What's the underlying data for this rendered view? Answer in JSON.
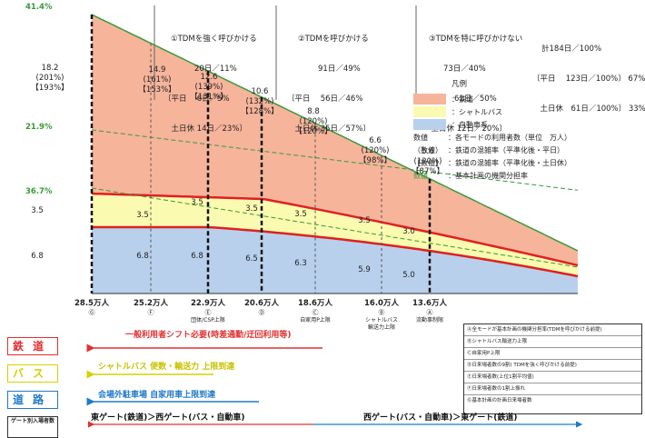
{
  "chart_data": {
    "type": "area",
    "x_points": [
      "28.5万人",
      "25.2万人",
      "22.9万人",
      "20.6万人",
      "18.6万人",
      "16.0万人",
      "13.6万人"
    ],
    "x_letters": [
      "Ⓖ",
      "Ⓕ",
      "Ⓔ",
      "Ⓓ",
      "Ⓒ",
      "Ⓑ",
      "Ⓐ"
    ],
    "x_sublabels": [
      "",
      "",
      "団体/CSP上限",
      "",
      "自家用P上限",
      "シャトルバス\n輸送力上限",
      "流動事制限"
    ],
    "series": [
      {
        "name": "鉄道",
        "color": "#f6b49b"
      },
      {
        "name": "シャトルバス",
        "color": "#fafab0"
      },
      {
        "name": "自動車系",
        "color": "#b8d0ec"
      }
    ],
    "rail_labels": [
      {
        "value": "18.2",
        "p1": "(201%)",
        "p2": "【193%】"
      },
      {
        "value": "14.9",
        "p1": "(161%)",
        "p2": "【153%】"
      },
      {
        "value": "12.6",
        "p1": "(139%)",
        "p2": "【131%】"
      },
      {
        "value": "10.6",
        "p1": "(132%)",
        "p2": "【128%】"
      },
      {
        "value": "8.8",
        "p1": "(120%)",
        "p2": "【120%】"
      },
      {
        "value": "6.6",
        "p1": "(120%)",
        "p2": "【98%】"
      },
      {
        "value": "5.6",
        "p1": "(120%)",
        "p2": "【87%】"
      }
    ],
    "bus_labels": [
      "3.5",
      "3.5",
      "3.5",
      "3.5",
      "3.5",
      "3.5",
      "3.0"
    ],
    "car_labels": [
      "6.8",
      "6.8",
      "6.8",
      "6.5",
      "6.3",
      "5.9",
      "5.0"
    ],
    "left_pct": [
      "41.4%",
      "21.9%",
      "36.7%"
    ],
    "sections": [
      {
        "lines": [
          "①TDMを強く呼びかける",
          "20日／11%",
          "〔平日　 6日／5%",
          "　土日休 14日／23%〕"
        ]
      },
      {
        "lines": [
          "②TDMを呼びかける",
          "91日／49%",
          "〔平日　 56日／46%",
          "　土日休 35日／57%〕"
        ]
      },
      {
        "lines": [
          "③TDMを特に呼びかけない",
          "73日／40%",
          "〔平日　61日／50%",
          "　土日休 12日／20%〕"
        ]
      }
    ],
    "totals": {
      "lines": [
        "計184日／100%",
        "〔平日　 123日／100%〕 67%",
        "　土日休　61日／100%〕 33%"
      ]
    },
    "legend": {
      "title": "凡例",
      "rows": [
        {
          "label": "：鉄道"
        },
        {
          "label": "：シャトルバス"
        },
        {
          "label": "：自動車系"
        }
      ],
      "notes": [
        {
          "key": "数値",
          "desc": "：各モードの利用者数（単位　万人）"
        },
        {
          "key": "（数値）",
          "desc": "：鉄道の混雑率（平準化後・平日）"
        },
        {
          "key": "【数値】",
          "desc": "：鉄道の混雑率（平準化後・土日休）"
        },
        {
          "key": "数値",
          "desc": "：基本計画の機関分担率",
          "key_color": "#3a9a3a"
        }
      ]
    }
  },
  "bottom_box": {
    "items": [
      "Ⓐ全モードが基本計画の機関分担率(TDMを呼びかける前提)",
      "Ⓑシャトルバス輸送力上限",
      "Ⓒ自家用P上限",
      "Ⓓ日来場者数の9割( TDMを強く呼びかける前提)",
      "Ⓔ日来場者数(上位1割平均値)",
      "Ⓕ日来場者数の1割上振れ",
      "Ⓖ基本計画の計画日来場者数"
    ]
  },
  "categories": [
    {
      "label": "鉄道",
      "color": "#e03030",
      "text": "一般利用者シフト必要(時差通勤/迂回利用等)"
    },
    {
      "label": "バス",
      "color": "#d6d000",
      "text": "シャトルバス 便数・輸送力 上限到達"
    },
    {
      "label": "道路",
      "color": "#1f7ac8",
      "text": "会場外駐車場 自家用車上限到達"
    }
  ],
  "gate": {
    "label": "ゲート別入場者数",
    "left_text": "東ゲート(鉄道)＞西ゲート(バス・自動車)",
    "right_text": "西ゲート(バス・自動車)＞東ゲート(鉄道)"
  }
}
